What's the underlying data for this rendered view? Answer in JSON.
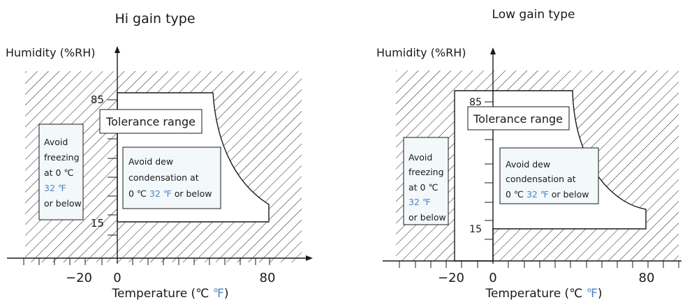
{
  "colors": {
    "accent": "#4a86c8",
    "box_fill": "#f3f8fa",
    "line": "#1a1a1a"
  },
  "left": {
    "title": "Hi gain type",
    "y_axis_label": "Humidity (%RH)",
    "x_axis_label_main": "Temperature (℃ ",
    "x_axis_label_f": "℉",
    "x_axis_label_end": ")",
    "y_tick_high": "85",
    "y_tick_low": "15",
    "x_tick_neg": "−20",
    "x_tick_zero": "0",
    "x_tick_high": "80",
    "tolerance_label": "Tolerance range",
    "freeze": {
      "l1": "Avoid",
      "l2": "freezing",
      "l3": "at 0 ℃",
      "l4": "32 ℉",
      "l5": "or below"
    },
    "dew": {
      "l1": "Avoid dew",
      "l2": "condensation at",
      "l3a": "0 ℃ ",
      "l3b": "32 ℉",
      "l3c": " or below"
    }
  },
  "right": {
    "title": "Low gain type",
    "y_axis_label": "Humidity (%RH)",
    "x_axis_label_main": "Temperature (℃ ",
    "x_axis_label_f": "℉",
    "x_axis_label_end": ")",
    "y_tick_high": "85",
    "y_tick_low": "15",
    "x_tick_neg": "−20",
    "x_tick_zero": "0",
    "x_tick_high": "80",
    "tolerance_label": "Tolerance range",
    "freeze": {
      "l1": "Avoid",
      "l2": "freezing",
      "l3": "at 0 ℃",
      "l4": "32 ℉",
      "l5": "or below"
    },
    "dew": {
      "l1": "Avoid dew",
      "l2": "condensation at",
      "l3a": "0 ℃ ",
      "l3b": "32 ℉",
      "l3c": " or below"
    }
  }
}
